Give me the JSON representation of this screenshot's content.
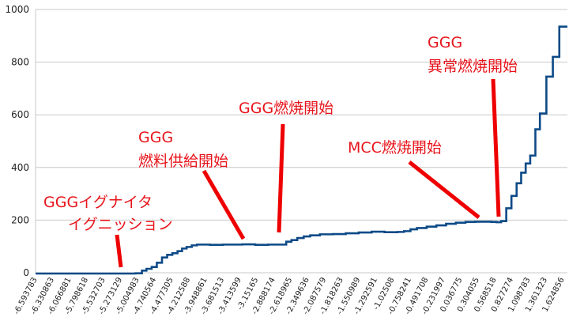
{
  "chart_data": {
    "type": "line",
    "step": true,
    "ylim": [
      0,
      1000
    ],
    "yticks": [
      0,
      200,
      400,
      600,
      800,
      1000
    ],
    "grid": true,
    "x_tick_labels": [
      "6.593783",
      "6.330863",
      "6.066881",
      "5.798618",
      "5.532703",
      "5.273129",
      "5.004983",
      "4.740564",
      "4.477305",
      "4.212588",
      "3.948861",
      "3.681513",
      "3.413599",
      "3.15165",
      "2.888174",
      "2.618965",
      "2.349636",
      "2.087579",
      "1.818263",
      "1.550989",
      "1.292591",
      "1.02508",
      "0.758241",
      "0.491708",
      "0.231997",
      "0.036775",
      "0.304055",
      "0.568518",
      "0.827274",
      "1.098783",
      "1.361323",
      "1.624856"
    ],
    "x_tick_signs": [
      "-",
      "-",
      "-",
      "-",
      "-",
      "-",
      "-",
      "-",
      "-",
      "-",
      "-",
      "-",
      "-",
      "-",
      "-",
      "-",
      "-",
      "-",
      "-",
      "-",
      "-",
      "-",
      "-",
      "-",
      "-",
      "",
      "",
      "",
      "",
      "",
      "",
      ""
    ],
    "x_range": [
      -6.593783,
      1.624856
    ],
    "series": [
      {
        "color": "#0d4a87",
        "points": [
          [
            -6.593783,
            -3
          ],
          [
            -5.4,
            -3
          ],
          [
            -5.2,
            -3
          ],
          [
            -5.05,
            -2
          ],
          [
            -4.95,
            8
          ],
          [
            -4.88,
            15
          ],
          [
            -4.8,
            22
          ],
          [
            -4.72,
            38
          ],
          [
            -4.64,
            58
          ],
          [
            -4.56,
            68
          ],
          [
            -4.48,
            74
          ],
          [
            -4.4,
            82
          ],
          [
            -4.33,
            92
          ],
          [
            -4.26,
            98
          ],
          [
            -4.18,
            104
          ],
          [
            -4.1,
            107
          ],
          [
            -3.9,
            106
          ],
          [
            -3.7,
            107
          ],
          [
            -3.4,
            108
          ],
          [
            -3.2,
            106
          ],
          [
            -3.0,
            107
          ],
          [
            -2.8,
            107
          ],
          [
            -2.72,
            118
          ],
          [
            -2.64,
            124
          ],
          [
            -2.55,
            132
          ],
          [
            -2.45,
            138
          ],
          [
            -2.35,
            142
          ],
          [
            -2.2,
            146
          ],
          [
            -2.0,
            147
          ],
          [
            -1.8,
            150
          ],
          [
            -1.6,
            153
          ],
          [
            -1.4,
            156
          ],
          [
            -1.2,
            154
          ],
          [
            -1.0,
            155
          ],
          [
            -0.9,
            158
          ],
          [
            -0.8,
            165
          ],
          [
            -0.7,
            170
          ],
          [
            -0.55,
            175
          ],
          [
            -0.4,
            180
          ],
          [
            -0.25,
            186
          ],
          [
            -0.1,
            190
          ],
          [
            0.05,
            193
          ],
          [
            0.2,
            194
          ],
          [
            0.35,
            194
          ],
          [
            0.45,
            193
          ],
          [
            0.53,
            192
          ],
          [
            0.6,
            196
          ],
          [
            0.68,
            245
          ],
          [
            0.76,
            292
          ],
          [
            0.84,
            340
          ],
          [
            0.91,
            380
          ],
          [
            0.98,
            415
          ],
          [
            1.05,
            445
          ],
          [
            1.13,
            545
          ],
          [
            1.2,
            605
          ],
          [
            1.3,
            745
          ],
          [
            1.4,
            820
          ],
          [
            1.5,
            935
          ],
          [
            1.624856,
            935
          ]
        ]
      }
    ],
    "annotations": [
      {
        "lines": [
          "GGGイグナイタ",
          "イグニッション"
        ],
        "indent": [
          0,
          28
        ]
      },
      {
        "lines": [
          "GGG",
          "燃料供給開始"
        ],
        "indent": [
          0,
          0
        ]
      },
      {
        "lines": [
          "GGG燃焼開始"
        ],
        "indent": [
          0
        ]
      },
      {
        "lines": [
          "MCC燃焼開始"
        ],
        "indent": [
          0
        ]
      },
      {
        "lines": [
          "GGG",
          "異常燃焼開始"
        ],
        "indent": [
          0,
          0
        ]
      }
    ],
    "colors": {
      "series": "#0d4a87",
      "annotation": "#e8141b",
      "grid": "#c8c8c8"
    }
  }
}
